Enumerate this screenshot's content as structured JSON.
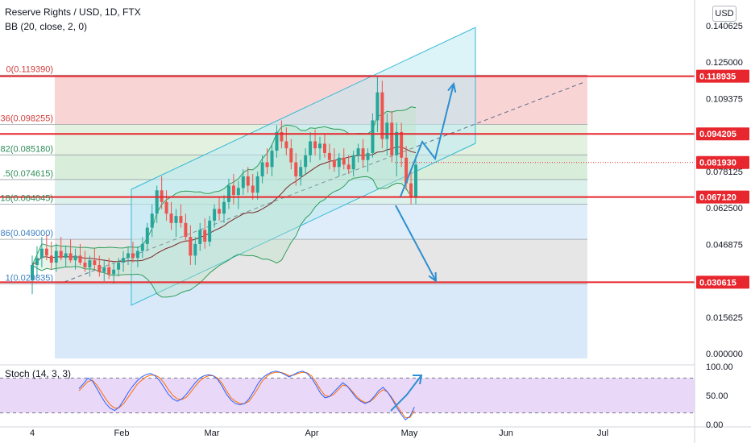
{
  "header": {
    "title": "Reserve Rights / USD, 1D, FTX",
    "indicator": "BB (20, close, 2, 0)",
    "currency_button": "USD"
  },
  "colors": {
    "candle_up": "#26a69a",
    "candle_down": "#ef5350",
    "bb_band": "#2e9e5b",
    "bb_basis": "#7a2a2a",
    "channel": "#36b9d6",
    "hline": "#e8262d",
    "projection_arrow": "#2e8fd0",
    "stoch_k": "#2962ff",
    "stoch_d": "#ff6d00",
    "stoch_fill": "#e1c8f7"
  },
  "chart_data": [
    {
      "type": "candlestick",
      "title": "Reserve Rights / USD, 1D, FTX",
      "indicator": "BB (20, close, 2, 0)",
      "x_tick_labels": [
        "4",
        "Feb",
        "Mar",
        "Apr",
        "May",
        "Jun",
        "Jul"
      ],
      "y_tick_labels": [
        "0.140625",
        "0.125000",
        "0.109375",
        "0.093750",
        "0.078125",
        "0.062500",
        "0.046875",
        "0.031250",
        "0.015625",
        "0.000000"
      ],
      "ylim": [
        0,
        0.144
      ],
      "price_labels": [
        "0.118935",
        "0.094205",
        "0.081930",
        "0.067120",
        "0.030615"
      ],
      "horizontal_lines": [
        0.118935,
        0.094205,
        0.06712,
        0.030615
      ],
      "current_price": 0.08193,
      "fib_retracement": [
        {
          "label": "0(0.119390)",
          "value": 0.11939
        },
        {
          "label": "36(0.098255)",
          "value": 0.098255
        },
        {
          "label": "82(0.085180)",
          "value": 0.08518
        },
        {
          "label": ".5(0.074615)",
          "value": 0.074615
        },
        {
          "label": "18(0.064045)",
          "value": 0.064045
        },
        {
          "label": "86(0.049000)",
          "value": 0.049
        },
        {
          "label": "1(0.029835)",
          "value": 0.029835
        }
      ],
      "candles": [
        {
          "o": 0.0315,
          "h": 0.042,
          "l": 0.0255,
          "c": 0.038
        },
        {
          "o": 0.038,
          "h": 0.046,
          "l": 0.033,
          "c": 0.041
        },
        {
          "o": 0.041,
          "h": 0.05,
          "l": 0.037,
          "c": 0.045
        },
        {
          "o": 0.045,
          "h": 0.051,
          "l": 0.04,
          "c": 0.042
        },
        {
          "o": 0.042,
          "h": 0.048,
          "l": 0.036,
          "c": 0.039
        },
        {
          "o": 0.039,
          "h": 0.047,
          "l": 0.035,
          "c": 0.044
        },
        {
          "o": 0.044,
          "h": 0.05,
          "l": 0.04,
          "c": 0.041
        },
        {
          "o": 0.041,
          "h": 0.046,
          "l": 0.037,
          "c": 0.043
        },
        {
          "o": 0.043,
          "h": 0.049,
          "l": 0.039,
          "c": 0.04
        },
        {
          "o": 0.04,
          "h": 0.045,
          "l": 0.036,
          "c": 0.042
        },
        {
          "o": 0.042,
          "h": 0.047,
          "l": 0.038,
          "c": 0.039
        },
        {
          "o": 0.039,
          "h": 0.044,
          "l": 0.035,
          "c": 0.037
        },
        {
          "o": 0.037,
          "h": 0.042,
          "l": 0.033,
          "c": 0.04
        },
        {
          "o": 0.04,
          "h": 0.045,
          "l": 0.036,
          "c": 0.038
        },
        {
          "o": 0.038,
          "h": 0.042,
          "l": 0.033,
          "c": 0.035
        },
        {
          "o": 0.035,
          "h": 0.04,
          "l": 0.031,
          "c": 0.037
        },
        {
          "o": 0.037,
          "h": 0.041,
          "l": 0.032,
          "c": 0.034
        },
        {
          "o": 0.034,
          "h": 0.039,
          "l": 0.03,
          "c": 0.036
        },
        {
          "o": 0.036,
          "h": 0.041,
          "l": 0.033,
          "c": 0.039
        },
        {
          "o": 0.039,
          "h": 0.044,
          "l": 0.035,
          "c": 0.041
        },
        {
          "o": 0.041,
          "h": 0.046,
          "l": 0.038,
          "c": 0.043
        },
        {
          "o": 0.043,
          "h": 0.048,
          "l": 0.039,
          "c": 0.041
        },
        {
          "o": 0.041,
          "h": 0.046,
          "l": 0.037,
          "c": 0.044
        },
        {
          "o": 0.044,
          "h": 0.05,
          "l": 0.041,
          "c": 0.047
        },
        {
          "o": 0.047,
          "h": 0.056,
          "l": 0.044,
          "c": 0.054
        },
        {
          "o": 0.054,
          "h": 0.064,
          "l": 0.05,
          "c": 0.06
        },
        {
          "o": 0.06,
          "h": 0.072,
          "l": 0.056,
          "c": 0.07
        },
        {
          "o": 0.07,
          "h": 0.076,
          "l": 0.062,
          "c": 0.065
        },
        {
          "o": 0.065,
          "h": 0.07,
          "l": 0.057,
          "c": 0.06
        },
        {
          "o": 0.06,
          "h": 0.065,
          "l": 0.053,
          "c": 0.056
        },
        {
          "o": 0.056,
          "h": 0.062,
          "l": 0.05,
          "c": 0.059
        },
        {
          "o": 0.059,
          "h": 0.064,
          "l": 0.054,
          "c": 0.056
        },
        {
          "o": 0.056,
          "h": 0.06,
          "l": 0.048,
          "c": 0.05
        },
        {
          "o": 0.05,
          "h": 0.055,
          "l": 0.038,
          "c": 0.042
        },
        {
          "o": 0.042,
          "h": 0.05,
          "l": 0.038,
          "c": 0.047
        },
        {
          "o": 0.047,
          "h": 0.056,
          "l": 0.044,
          "c": 0.053
        },
        {
          "o": 0.053,
          "h": 0.058,
          "l": 0.045,
          "c": 0.048
        },
        {
          "o": 0.048,
          "h": 0.059,
          "l": 0.046,
          "c": 0.057
        },
        {
          "o": 0.057,
          "h": 0.064,
          "l": 0.054,
          "c": 0.062
        },
        {
          "o": 0.062,
          "h": 0.067,
          "l": 0.057,
          "c": 0.06
        },
        {
          "o": 0.06,
          "h": 0.068,
          "l": 0.056,
          "c": 0.065
        },
        {
          "o": 0.065,
          "h": 0.075,
          "l": 0.062,
          "c": 0.072
        },
        {
          "o": 0.072,
          "h": 0.077,
          "l": 0.064,
          "c": 0.068
        },
        {
          "o": 0.068,
          "h": 0.074,
          "l": 0.062,
          "c": 0.071
        },
        {
          "o": 0.071,
          "h": 0.079,
          "l": 0.068,
          "c": 0.076
        },
        {
          "o": 0.076,
          "h": 0.08,
          "l": 0.069,
          "c": 0.072
        },
        {
          "o": 0.072,
          "h": 0.077,
          "l": 0.066,
          "c": 0.069
        },
        {
          "o": 0.069,
          "h": 0.078,
          "l": 0.066,
          "c": 0.076
        },
        {
          "o": 0.076,
          "h": 0.085,
          "l": 0.073,
          "c": 0.082
        },
        {
          "o": 0.082,
          "h": 0.088,
          "l": 0.077,
          "c": 0.08
        },
        {
          "o": 0.08,
          "h": 0.09,
          "l": 0.076,
          "c": 0.087
        },
        {
          "o": 0.087,
          "h": 0.098,
          "l": 0.084,
          "c": 0.095
        },
        {
          "o": 0.095,
          "h": 0.1,
          "l": 0.088,
          "c": 0.091
        },
        {
          "o": 0.091,
          "h": 0.097,
          "l": 0.085,
          "c": 0.088
        },
        {
          "o": 0.088,
          "h": 0.092,
          "l": 0.079,
          "c": 0.082
        },
        {
          "o": 0.082,
          "h": 0.086,
          "l": 0.072,
          "c": 0.076
        },
        {
          "o": 0.076,
          "h": 0.083,
          "l": 0.072,
          "c": 0.08
        },
        {
          "o": 0.08,
          "h": 0.088,
          "l": 0.077,
          "c": 0.085
        },
        {
          "o": 0.085,
          "h": 0.095,
          "l": 0.082,
          "c": 0.091
        },
        {
          "o": 0.091,
          "h": 0.096,
          "l": 0.085,
          "c": 0.088
        },
        {
          "o": 0.088,
          "h": 0.093,
          "l": 0.083,
          "c": 0.09
        },
        {
          "o": 0.09,
          "h": 0.094,
          "l": 0.084,
          "c": 0.086
        },
        {
          "o": 0.086,
          "h": 0.09,
          "l": 0.079,
          "c": 0.083
        },
        {
          "o": 0.083,
          "h": 0.088,
          "l": 0.078,
          "c": 0.08
        },
        {
          "o": 0.08,
          "h": 0.086,
          "l": 0.076,
          "c": 0.084
        },
        {
          "o": 0.084,
          "h": 0.088,
          "l": 0.079,
          "c": 0.081
        },
        {
          "o": 0.081,
          "h": 0.085,
          "l": 0.077,
          "c": 0.079
        },
        {
          "o": 0.079,
          "h": 0.087,
          "l": 0.076,
          "c": 0.085
        },
        {
          "o": 0.085,
          "h": 0.09,
          "l": 0.082,
          "c": 0.088
        },
        {
          "o": 0.088,
          "h": 0.092,
          "l": 0.08,
          "c": 0.083
        },
        {
          "o": 0.083,
          "h": 0.088,
          "l": 0.078,
          "c": 0.086
        },
        {
          "o": 0.086,
          "h": 0.103,
          "l": 0.084,
          "c": 0.1
        },
        {
          "o": 0.1,
          "h": 0.119,
          "l": 0.095,
          "c": 0.112
        },
        {
          "o": 0.112,
          "h": 0.117,
          "l": 0.088,
          "c": 0.092
        },
        {
          "o": 0.092,
          "h": 0.103,
          "l": 0.085,
          "c": 0.099
        },
        {
          "o": 0.099,
          "h": 0.104,
          "l": 0.082,
          "c": 0.085
        },
        {
          "o": 0.085,
          "h": 0.099,
          "l": 0.076,
          "c": 0.095
        },
        {
          "o": 0.095,
          "h": 0.099,
          "l": 0.08,
          "c": 0.084
        },
        {
          "o": 0.084,
          "h": 0.089,
          "l": 0.07,
          "c": 0.073
        },
        {
          "o": 0.073,
          "h": 0.078,
          "l": 0.064,
          "c": 0.067
        },
        {
          "o": 0.067,
          "h": 0.085,
          "l": 0.064,
          "c": 0.081
        }
      ]
    },
    {
      "type": "line",
      "title": "Stoch (14, 3, 3)",
      "y_tick_labels": [
        "100.00",
        "50.00",
        "0.00"
      ],
      "ylim": [
        0,
        100
      ],
      "band_lines": [
        80,
        20
      ],
      "series": [
        {
          "values": [
            62,
            70,
            80,
            75,
            62,
            48,
            36,
            28,
            24,
            30,
            42,
            55,
            66,
            75,
            82,
            86,
            88,
            84,
            76,
            64,
            52,
            44,
            40,
            44,
            52,
            62,
            72,
            80,
            84,
            86,
            84,
            78,
            66,
            52,
            42,
            36,
            34,
            36,
            44,
            56,
            70,
            80,
            86,
            90,
            92,
            90,
            86,
            82,
            86,
            90,
            92,
            88,
            80,
            68,
            54,
            46,
            48,
            56,
            64,
            72,
            66,
            56,
            46,
            40,
            36,
            40,
            48,
            58,
            64,
            56,
            44,
            30,
            18,
            8,
            14,
            30
          ]
        },
        {
          "values": [
            58,
            66,
            74,
            76,
            68,
            56,
            44,
            34,
            28,
            29,
            36,
            47,
            58,
            69,
            76,
            82,
            85,
            85,
            81,
            72,
            60,
            50,
            44,
            43,
            47,
            56,
            66,
            75,
            81,
            84,
            84,
            80,
            71,
            58,
            46,
            40,
            36,
            36,
            40,
            50,
            62,
            75,
            83,
            88,
            90,
            90,
            88,
            84,
            85,
            88,
            90,
            89,
            84,
            73,
            60,
            50,
            48,
            52,
            60,
            68,
            66,
            58,
            49,
            42,
            38,
            39,
            45,
            54,
            60,
            56,
            46,
            34,
            22,
            12,
            12,
            24
          ]
        }
      ]
    }
  ]
}
